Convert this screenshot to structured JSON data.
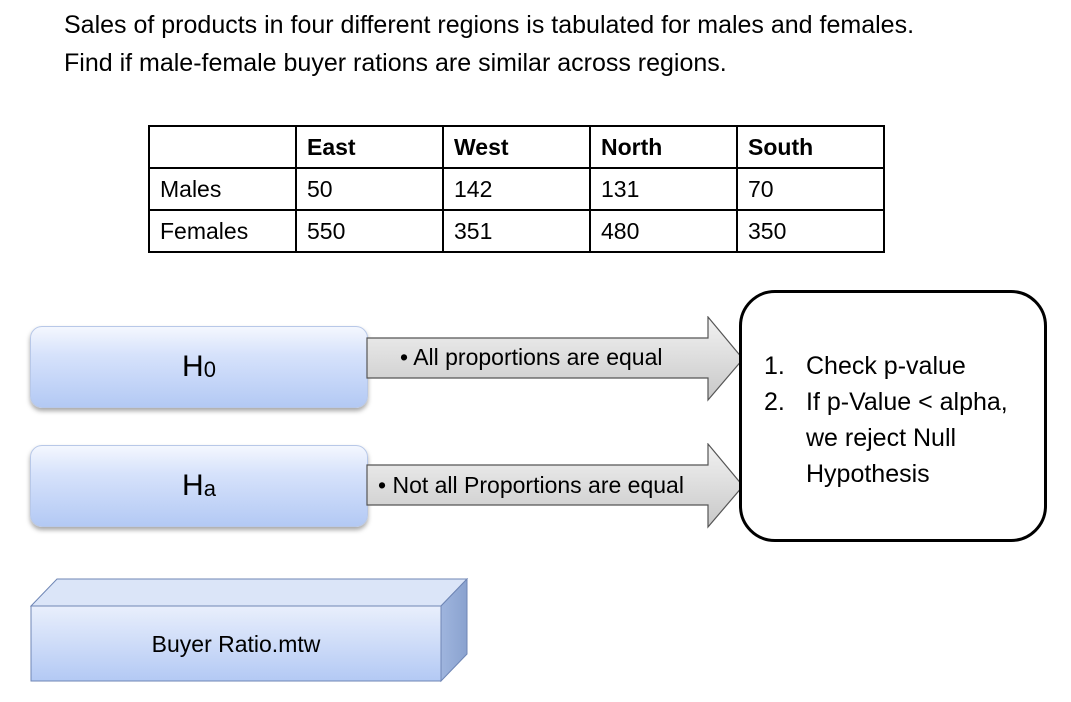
{
  "intro": {
    "line1": "Sales of products in four different regions is tabulated for males and females.",
    "line2": "Find if male-female buyer rations are similar across regions."
  },
  "table": {
    "headers": [
      "",
      "East",
      "West",
      "North",
      "South"
    ],
    "rows": [
      {
        "label": "Males",
        "values": [
          "50",
          "142",
          "131",
          "70"
        ]
      },
      {
        "label": "Females",
        "values": [
          "550",
          "351",
          "480",
          "350"
        ]
      }
    ]
  },
  "null_hypothesis": {
    "symbol": "H",
    "subscript": "0",
    "statement": "All proportions are equal"
  },
  "alt_hypothesis": {
    "symbol": "H",
    "subscript": "a",
    "statement": "Not all Proportions are equal"
  },
  "steps": [
    {
      "num": "1.",
      "text": "Check p-value"
    },
    {
      "num": "2.",
      "text": "If p-Value < alpha, we reject Null Hypothesis"
    }
  ],
  "file": {
    "label": "Buyer Ratio.mtw"
  },
  "colors": {
    "box_top": "#f4f7fe",
    "box_bottom": "#b3c9f4",
    "arrow_fill": "#d9d9d9"
  }
}
